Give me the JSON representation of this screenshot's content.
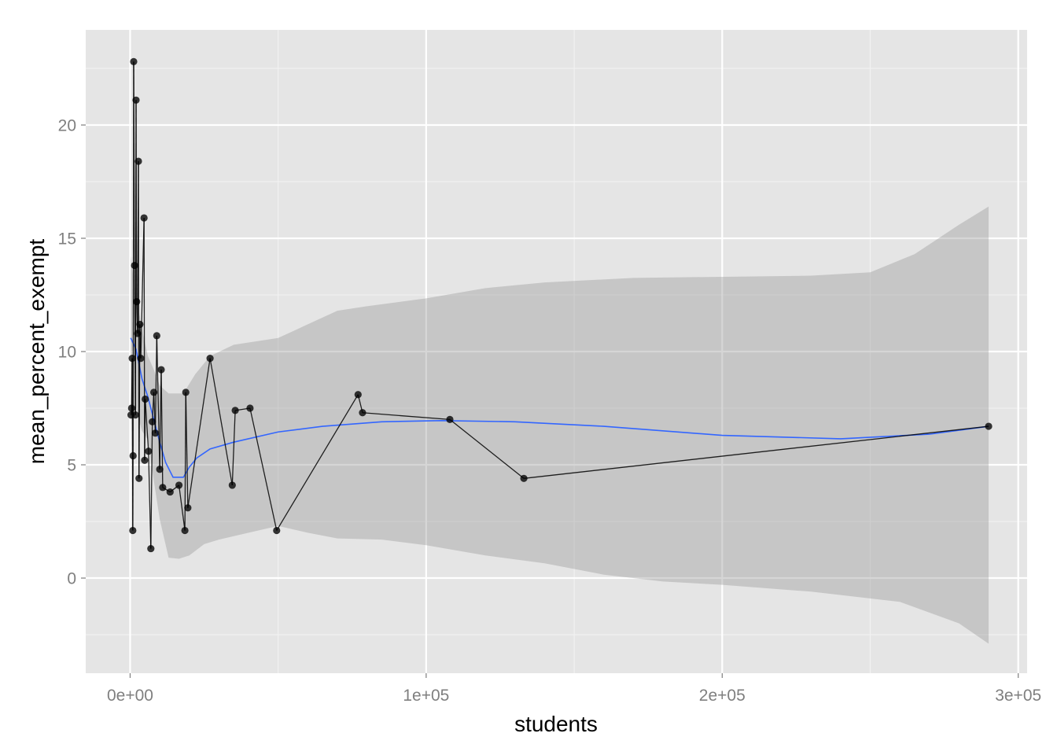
{
  "chart_data": {
    "type": "line",
    "title": "",
    "xlabel": "students",
    "ylabel": "mean_percent_exempt",
    "xlim": [
      -15000,
      303000
    ],
    "ylim": [
      -4.2,
      24.2
    ],
    "x_ticks": [
      {
        "value": 0,
        "label": "0e+00"
      },
      {
        "value": 100000,
        "label": "1e+05"
      },
      {
        "value": 200000,
        "label": "2e+05"
      },
      {
        "value": 300000,
        "label": "3e+05"
      }
    ],
    "y_ticks": [
      {
        "value": 0,
        "label": "0"
      },
      {
        "value": 5,
        "label": "5"
      },
      {
        "value": 10,
        "label": "10"
      },
      {
        "value": 15,
        "label": "15"
      },
      {
        "value": 20,
        "label": "20"
      }
    ],
    "grid": true,
    "colors": {
      "panel": "#e5e5e5",
      "grid_major": "#ffffff",
      "grid_minor": "#f2f2f2",
      "points": "#000000",
      "smooth_line": "#3366ff",
      "confidence_band": "#999999"
    },
    "series": [
      {
        "kind": "points-and-path",
        "points": [
          [
            300,
            7.2
          ],
          [
            500,
            7.5
          ],
          [
            700,
            9.7
          ],
          [
            900,
            2.1
          ],
          [
            1000,
            5.4
          ],
          [
            1200,
            22.8
          ],
          [
            1500,
            13.8
          ],
          [
            1800,
            7.2
          ],
          [
            2000,
            21.1
          ],
          [
            2200,
            12.2
          ],
          [
            2500,
            10.8
          ],
          [
            2800,
            18.4
          ],
          [
            3000,
            4.4
          ],
          [
            3300,
            11.2
          ],
          [
            3600,
            9.7
          ],
          [
            4700,
            15.9
          ],
          [
            4900,
            5.2
          ],
          [
            5100,
            7.9
          ],
          [
            6200,
            5.6
          ],
          [
            7000,
            1.3
          ],
          [
            7500,
            6.9
          ],
          [
            8000,
            8.2
          ],
          [
            8500,
            6.4
          ],
          [
            9000,
            10.7
          ],
          [
            10000,
            4.8
          ],
          [
            10500,
            9.2
          ],
          [
            11000,
            4.0
          ],
          [
            13500,
            3.8
          ],
          [
            16500,
            4.1
          ],
          [
            18500,
            2.1
          ],
          [
            18800,
            8.2
          ],
          [
            19500,
            3.1
          ],
          [
            27000,
            9.7
          ],
          [
            34500,
            4.1
          ],
          [
            35500,
            7.4
          ],
          [
            40500,
            7.5
          ],
          [
            49500,
            2.1
          ],
          [
            77000,
            8.1
          ],
          [
            78500,
            7.3
          ],
          [
            108000,
            7.0
          ],
          [
            133000,
            4.4
          ],
          [
            290000,
            6.7
          ]
        ]
      },
      {
        "kind": "smooth",
        "points": [
          [
            200,
            10.6
          ],
          [
            2000,
            10.1
          ],
          [
            4000,
            8.8
          ],
          [
            6000,
            8.0
          ],
          [
            8000,
            7.0
          ],
          [
            10000,
            6.0
          ],
          [
            12000,
            5.1
          ],
          [
            14500,
            4.45
          ],
          [
            18000,
            4.45
          ],
          [
            20000,
            4.9
          ],
          [
            22500,
            5.3
          ],
          [
            27000,
            5.7
          ],
          [
            35000,
            6.0
          ],
          [
            50000,
            6.45
          ],
          [
            65000,
            6.7
          ],
          [
            85000,
            6.9
          ],
          [
            105000,
            6.95
          ],
          [
            130000,
            6.9
          ],
          [
            160000,
            6.7
          ],
          [
            200000,
            6.3
          ],
          [
            240000,
            6.15
          ],
          [
            270000,
            6.35
          ],
          [
            290000,
            6.7
          ]
        ]
      },
      {
        "kind": "confidence-band",
        "upper": [
          [
            200,
            14.2
          ],
          [
            2000,
            12.5
          ],
          [
            4000,
            11.0
          ],
          [
            6000,
            9.8
          ],
          [
            8000,
            9.2
          ],
          [
            10000,
            8.5
          ],
          [
            13000,
            8.15
          ],
          [
            18000,
            8.15
          ],
          [
            22000,
            9.0
          ],
          [
            27000,
            9.8
          ],
          [
            35000,
            10.3
          ],
          [
            50000,
            10.6
          ],
          [
            60000,
            11.2
          ],
          [
            70000,
            11.8
          ],
          [
            80000,
            12.0
          ],
          [
            100000,
            12.35
          ],
          [
            120000,
            12.8
          ],
          [
            140000,
            13.05
          ],
          [
            170000,
            13.25
          ],
          [
            200000,
            13.3
          ],
          [
            230000,
            13.35
          ],
          [
            250000,
            13.5
          ],
          [
            265000,
            14.3
          ],
          [
            280000,
            15.6
          ],
          [
            290000,
            16.4
          ]
        ],
        "lower": [
          [
            200,
            7.0
          ],
          [
            2000,
            7.5
          ],
          [
            4000,
            6.5
          ],
          [
            6000,
            6.1
          ],
          [
            8000,
            4.3
          ],
          [
            10000,
            2.6
          ],
          [
            13000,
            0.9
          ],
          [
            16500,
            0.85
          ],
          [
            20000,
            1.0
          ],
          [
            25000,
            1.5
          ],
          [
            30000,
            1.7
          ],
          [
            40000,
            2.0
          ],
          [
            50000,
            2.3
          ],
          [
            60000,
            2.0
          ],
          [
            70000,
            1.75
          ],
          [
            85000,
            1.7
          ],
          [
            100000,
            1.45
          ],
          [
            120000,
            1.0
          ],
          [
            140000,
            0.65
          ],
          [
            160000,
            0.15
          ],
          [
            180000,
            -0.15
          ],
          [
            200000,
            -0.3
          ],
          [
            230000,
            -0.6
          ],
          [
            260000,
            -1.05
          ],
          [
            280000,
            -2.0
          ],
          [
            290000,
            -2.9
          ]
        ]
      }
    ]
  }
}
